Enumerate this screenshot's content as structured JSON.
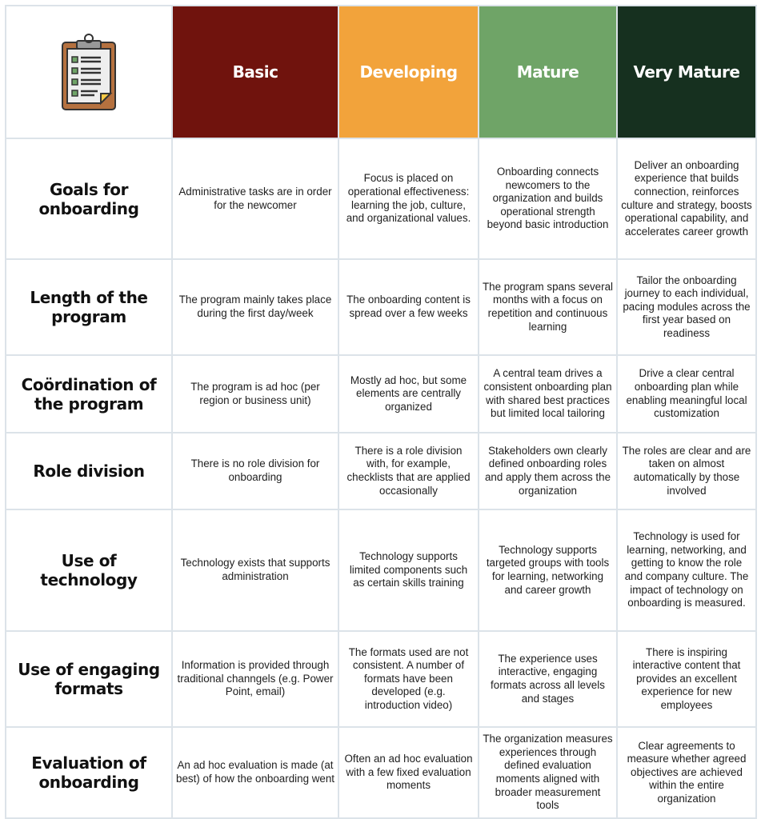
{
  "colors": {
    "basic": "#70130d",
    "developing": "#f2a33b",
    "mature": "#6fa467",
    "very_mature": "#16301f",
    "border": "#dce3e9"
  },
  "icon": "clipboard-checklist-icon",
  "columns": [
    "Basic",
    "Developing",
    "Mature",
    "Very Mature"
  ],
  "rows": [
    {
      "label": "Goals for onboarding",
      "cells": [
        "Administrative tasks are in order for the newcomer",
        "Focus is placed on operational effectiveness: learning the job, culture, and organizational values.",
        "Onboarding connects newcomers to the organization and builds operational strength beyond basic introduction",
        "Deliver an onboarding experience that builds connection, reinforces culture and strategy, boosts operational capability, and accelerates career growth"
      ]
    },
    {
      "label": "Length of the program",
      "cells": [
        "The program mainly takes place during the first day/week",
        "The onboarding content is spread over a few weeks",
        "The program spans several months with a focus on repetition and continuous learning",
        "Tailor the onboarding journey to each individual, pacing modules across the first year based on readiness"
      ]
    },
    {
      "label": "Coördination of the program",
      "cells": [
        "The program is ad hoc (per region or business unit)",
        "Mostly ad hoc, but some elements are centrally organized",
        "A central team drives a consistent onboarding plan with shared best practices but limited local tailoring",
        "Drive a clear central onboarding plan while enabling meaningful local customization"
      ]
    },
    {
      "label": "Role division",
      "cells": [
        "There is no role division for onboarding",
        "There is a role division with, for example, checklists that are applied occasionally",
        "Stakeholders own clearly defined onboarding roles and apply them across the organization",
        "The roles are clear and are taken on almost automatically by those involved"
      ]
    },
    {
      "label": "Use of technology",
      "cells": [
        "Technology exists that supports administration",
        "Technology supports limited components such as certain skills training",
        "Technology supports targeted groups with tools for learning, networking and career growth",
        "Technology is used for learning, networking, and getting to know the role and company culture. The impact of technology on onboarding is measured."
      ]
    },
    {
      "label": "Use of engaging formats",
      "cells": [
        "Information is provided through traditional channgels (e.g. Power Point, email)",
        "The formats used are not consistent. A number of formats have been developed (e.g. introduction video)",
        "The experience uses interactive, engaging formats across all levels and stages",
        "There is inspiring interactive content that provides an excellent experience for new employees"
      ]
    },
    {
      "label": "Evaluation of onboarding",
      "cells": [
        "An ad hoc evaluation is made (at best) of how the onboarding went",
        "Often an ad hoc evaluation with a few fixed evaluation moments",
        "The organization measures experiences through defined evaluation moments aligned with broader measurement tools",
        "Clear agreements to measure whether agreed objectives are achieved within the entire organization"
      ]
    }
  ]
}
